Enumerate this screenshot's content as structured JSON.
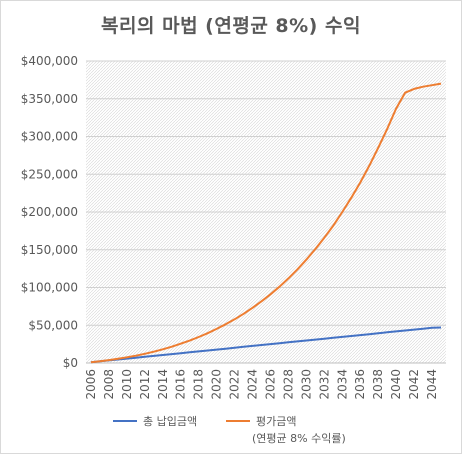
{
  "chart_data": {
    "type": "line",
    "title": "복리의 마법 (연평균 8%) 수익",
    "xlabel": "",
    "ylabel": "",
    "x": [
      2006,
      2007,
      2008,
      2009,
      2010,
      2011,
      2012,
      2013,
      2014,
      2015,
      2016,
      2017,
      2018,
      2019,
      2020,
      2021,
      2022,
      2023,
      2024,
      2025,
      2026,
      2027,
      2028,
      2029,
      2030,
      2031,
      2032,
      2033,
      2034,
      2035,
      2036,
      2037,
      2038,
      2039,
      2040,
      2041,
      2042,
      2043,
      2044,
      2045
    ],
    "x_ticks": [
      "2006",
      "2008",
      "2010",
      "2012",
      "2014",
      "2016",
      "2018",
      "2020",
      "2022",
      "2024",
      "2026",
      "2028",
      "2030",
      "2032",
      "2034",
      "2036",
      "2038",
      "2040",
      "2042",
      "2044"
    ],
    "y_ticks": [
      "$0",
      "$50,000",
      "$100,000",
      "$150,000",
      "$200,000",
      "$250,000",
      "$300,000",
      "$350,000",
      "$400,000"
    ],
    "ylim": [
      0,
      400000
    ],
    "grid": "hatched plot area",
    "legend_position": "bottom",
    "series": [
      {
        "name": "총 납입금액",
        "color": "#4472c4",
        "values": [
          1000,
          2200,
          3400,
          4600,
          5800,
          7000,
          8200,
          9400,
          10600,
          11800,
          13000,
          14200,
          15400,
          16600,
          17800,
          19000,
          20200,
          21400,
          22600,
          23800,
          25000,
          26200,
          27400,
          28600,
          29800,
          31000,
          32200,
          33400,
          34600,
          35800,
          37000,
          38200,
          39400,
          40600,
          41800,
          43000,
          44200,
          45400,
          46600,
          47000
        ]
      },
      {
        "name": "평가금액",
        "name_line2": "(연평균 8% 수익률)",
        "color": "#ed7d31",
        "values": [
          1000,
          2300,
          3800,
          5500,
          7500,
          9700,
          12200,
          15000,
          18100,
          21600,
          25500,
          29700,
          34400,
          39500,
          45100,
          51300,
          57900,
          65200,
          73100,
          81700,
          91000,
          101000,
          112000,
          124000,
          137000,
          151000,
          166000,
          182000,
          200000,
          219000,
          239000,
          261000,
          285000,
          310000,
          337000,
          358000,
          363000,
          366000,
          368000,
          370000
        ]
      }
    ]
  }
}
